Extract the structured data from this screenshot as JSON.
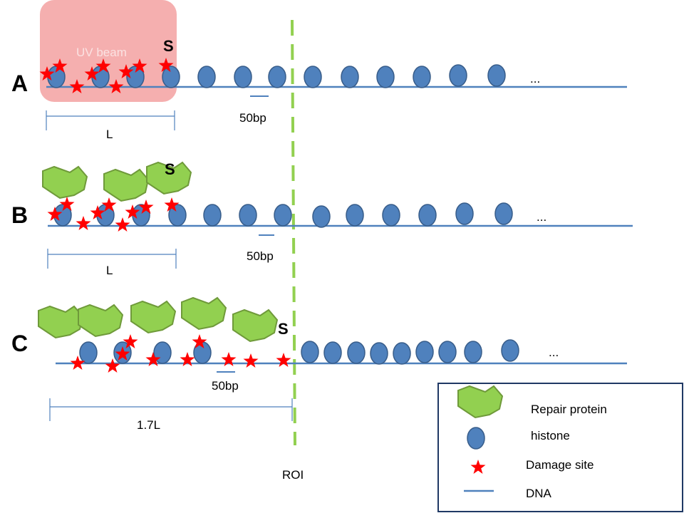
{
  "panels": [
    {
      "letter": "A",
      "s_label": "S",
      "scale_label": "50bp",
      "length_label": "L",
      "beam_label": "UV beam"
    },
    {
      "letter": "B",
      "s_label": "S",
      "scale_label": "50bp",
      "length_label": "L"
    },
    {
      "letter": "C",
      "s_label": "S",
      "scale_label": "50bp",
      "length_label": "1.7L"
    }
  ],
  "roi_label": "ROI",
  "ellipsis": "...",
  "legend": {
    "items": [
      {
        "icon": "repair-protein-icon",
        "label": "Repair protein"
      },
      {
        "icon": "histone-icon",
        "label": "histone"
      },
      {
        "icon": "damage-site-icon",
        "label": "Damage site"
      },
      {
        "icon": "dna-line-icon",
        "label": "DNA"
      }
    ]
  },
  "colors": {
    "uv_beam": "#f4a6a6",
    "histone_fill": "#4f81bd",
    "histone_stroke": "#385d8a",
    "dna": "#4f81bd",
    "damage": "#ff0000",
    "protein_fill": "#92d050",
    "protein_stroke": "#6f9a3a",
    "roi": "#92d050",
    "legend_border": "#1f3864"
  }
}
